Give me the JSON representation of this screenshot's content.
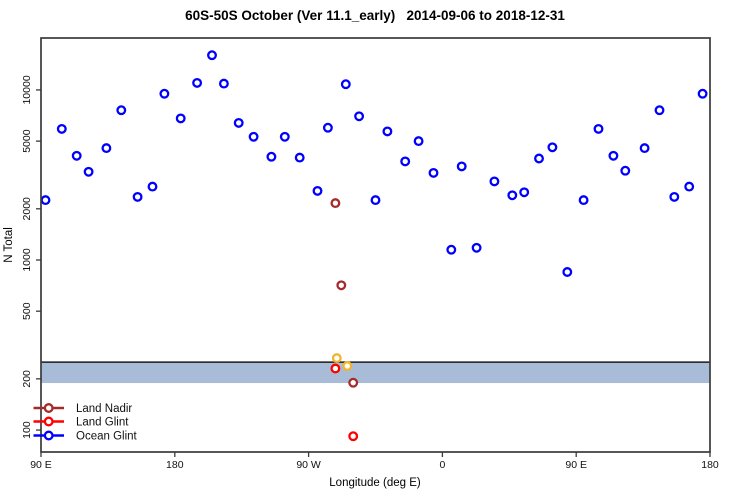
{
  "title": "60S-50S October (Ver 11.1_early)   2014-09-06 to 2018-12-31",
  "axes": {
    "x_label": "Longitude (deg E)",
    "y_label": "N Total",
    "x_ticks": [
      {
        "label": "90 E",
        "value": 90
      },
      {
        "label": "180",
        "value": 180
      },
      {
        "label": "90 W",
        "value": 270
      },
      {
        "label": "0",
        "value": 360
      },
      {
        "label": "90 E",
        "value": 450
      },
      {
        "label": "180",
        "value": 540
      }
    ],
    "y_ticks": [
      100,
      200,
      500,
      1000,
      2000,
      5000,
      10000
    ],
    "xlim": [
      90,
      540
    ],
    "ylim_log": [
      74.3,
      20200
    ],
    "scale": "log-y",
    "grid": "off"
  },
  "band": {
    "low": 189,
    "high": 251,
    "line_at": 251,
    "fill_color": "#a8bcd8",
    "line_color": "#1a1a1a"
  },
  "legend": {
    "position": "bottom-left-inside",
    "items": [
      {
        "label": "Land Nadir",
        "color": "#a52a2a"
      },
      {
        "label": "Land Glint",
        "color": "#ff0000"
      },
      {
        "label": "Ocean Glint",
        "color": "#0000ff"
      }
    ]
  },
  "chart_data": {
    "type": "scatter",
    "title": "60S-50S October (Ver 11.1_early)   2014-09-06 to 2018-12-31",
    "xlabel": "Longitude (deg E)",
    "ylabel": "N Total",
    "xlim": [
      90,
      540
    ],
    "ylim": [
      74.3,
      20200
    ],
    "y_scale": "log10",
    "legend_position": "bottom-left",
    "series": [
      {
        "name": "Ocean Glint",
        "color": "#0000ff",
        "marker": "open-circle",
        "points": [
          [
            93,
            2250
          ],
          [
            104,
            5900
          ],
          [
            114,
            4100
          ],
          [
            122,
            3300
          ],
          [
            134,
            4550
          ],
          [
            144,
            7600
          ],
          [
            155,
            2350
          ],
          [
            165,
            2700
          ],
          [
            173,
            9500
          ],
          [
            184,
            6800
          ],
          [
            195,
            11000
          ],
          [
            205,
            16000
          ],
          [
            213,
            10900
          ],
          [
            223,
            6400
          ],
          [
            233,
            5300
          ],
          [
            245,
            4050
          ],
          [
            254,
            5300
          ],
          [
            264,
            4000
          ],
          [
            276,
            2550
          ],
          [
            283,
            6000
          ],
          [
            295,
            10800
          ],
          [
            304,
            7000
          ],
          [
            315,
            2250
          ],
          [
            323,
            5700
          ],
          [
            335,
            3800
          ],
          [
            344,
            5000
          ],
          [
            354,
            3250
          ],
          [
            366,
            1150
          ],
          [
            373,
            3550
          ],
          [
            383,
            1180
          ],
          [
            395,
            2900
          ],
          [
            407,
            2400
          ],
          [
            415,
            2500
          ],
          [
            425,
            3950
          ],
          [
            434,
            4600
          ],
          [
            444,
            850
          ],
          [
            455,
            2250
          ],
          [
            465,
            5900
          ],
          [
            475,
            4100
          ],
          [
            483,
            3350
          ],
          [
            496,
            4550
          ],
          [
            506,
            7600
          ],
          [
            516,
            2350
          ],
          [
            526,
            2700
          ],
          [
            535,
            9500
          ]
        ]
      },
      {
        "name": "Land Nadir",
        "color": "#a52a2a",
        "marker": "open-circle",
        "points": [
          [
            288,
            2160
          ],
          [
            292,
            710
          ],
          [
            300,
            190
          ]
        ]
      },
      {
        "name": "Land Glint",
        "color": "#ff0000",
        "marker": "open-circle",
        "points": [
          [
            288,
            230
          ],
          [
            300,
            92
          ]
        ]
      },
      {
        "name": "Unlabeled (orange, partially hidden)",
        "color": "#f2b42c",
        "marker": "open-circle",
        "points": [
          [
            289,
            265
          ],
          [
            296,
            238
          ]
        ]
      }
    ],
    "annotations": {
      "threshold_band": {
        "from": 189,
        "to": 251,
        "top_line": 251
      }
    }
  }
}
